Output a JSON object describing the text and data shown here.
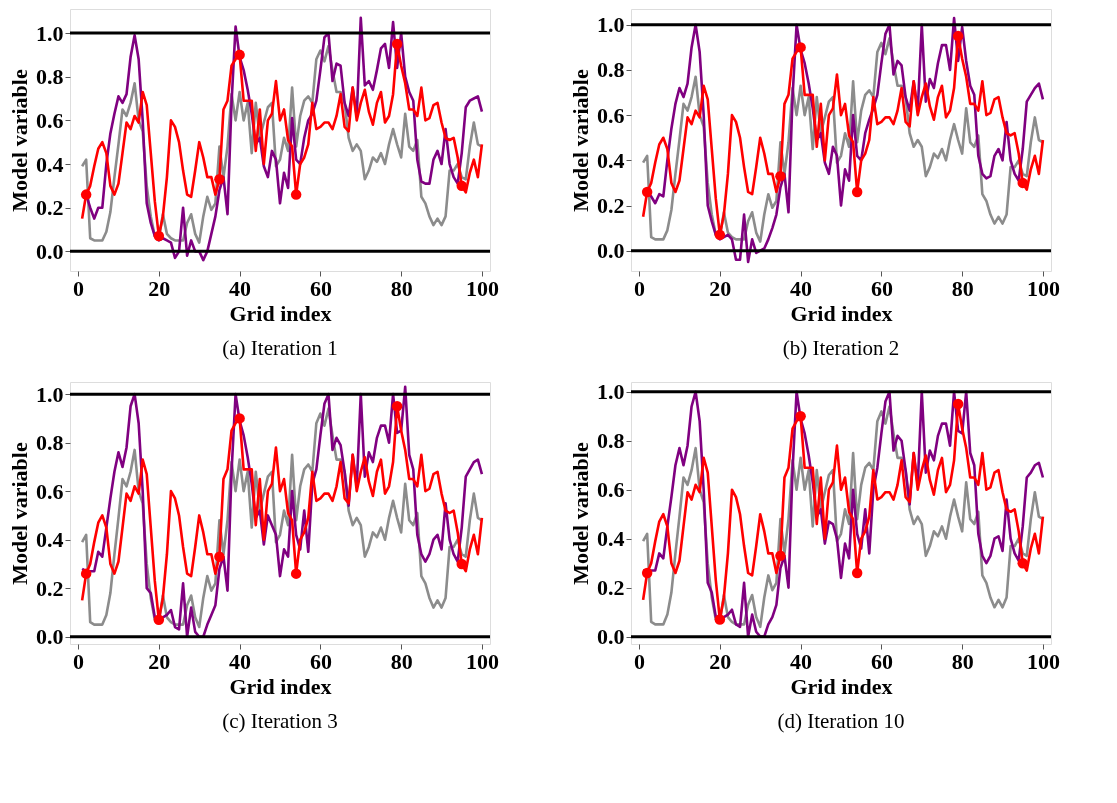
{
  "chart_data": [
    {
      "type": "line",
      "title": "(a) Iteration 1",
      "xlabel": "Grid index",
      "ylabel": "Model variable",
      "grid": false,
      "xlim": [
        -2,
        102
      ],
      "ylim": [
        -0.09,
        1.11
      ],
      "xticks": [
        0,
        20,
        40,
        60,
        80,
        100
      ],
      "yticks": [
        {
          "value": 0,
          "label": "0.0"
        },
        {
          "value": 0.2,
          "label": "0.2"
        },
        {
          "value": 0.4,
          "label": "0.4"
        },
        {
          "value": 0.6,
          "label": "0.6"
        },
        {
          "value": 0.8,
          "label": "0.8"
        },
        {
          "value": 1,
          "label": "1.0"
        }
      ],
      "ref_lines": [
        {
          "axis": "y",
          "value": 0,
          "color": "#000000"
        },
        {
          "axis": "y",
          "value": 1,
          "color": "#000000"
        }
      ],
      "x": [
        1,
        2,
        3,
        4,
        5,
        6,
        7,
        8,
        9,
        10,
        11,
        12,
        13,
        14,
        15,
        16,
        17,
        18,
        19,
        20,
        21,
        22,
        23,
        24,
        25,
        26,
        27,
        28,
        29,
        30,
        31,
        32,
        33,
        34,
        35,
        36,
        37,
        38,
        39,
        40,
        41,
        42,
        43,
        44,
        45,
        46,
        47,
        48,
        49,
        50,
        51,
        52,
        53,
        54,
        55,
        56,
        57,
        58,
        59,
        60,
        61,
        62,
        63,
        64,
        65,
        66,
        67,
        68,
        69,
        70,
        71,
        72,
        73,
        74,
        75,
        76,
        77,
        78,
        79,
        80,
        81,
        82,
        83,
        84,
        85,
        86,
        87,
        88,
        89,
        90,
        91,
        92,
        93,
        94,
        95,
        96,
        97,
        98,
        99,
        100
      ],
      "series": [
        {
          "type": "line",
          "marker": "none",
          "color": "#8c8c8c",
          "values": [
            0.39,
            0.42,
            0.06,
            0.05,
            0.05,
            0.05,
            0.09,
            0.18,
            0.34,
            0.49,
            0.65,
            0.62,
            0.68,
            0.77,
            0.6,
            0.55,
            0.3,
            0.16,
            0.07,
            0.06,
            0.17,
            0.08,
            0.06,
            0.05,
            0.05,
            0.05,
            0.13,
            0.17,
            0.08,
            0.04,
            0.16,
            0.25,
            0.19,
            0.22,
            0.48,
            0.34,
            0.48,
            0.72,
            0.6,
            0.73,
            0.6,
            0.68,
            0.45,
            0.68,
            0.52,
            0.59,
            0.66,
            0.68,
            0.39,
            0.42,
            0.52,
            0.46,
            0.75,
            0.48,
            0.62,
            0.69,
            0.71,
            0.68,
            0.88,
            0.92,
            0.87,
            0.94,
            0.83,
            0.73,
            0.73,
            0.68,
            0.52,
            0.46,
            0.49,
            0.46,
            0.33,
            0.37,
            0.43,
            0.41,
            0.45,
            0.4,
            0.49,
            0.56,
            0.49,
            0.43,
            0.63,
            0.48,
            0.46,
            0.51,
            0.25,
            0.22,
            0.16,
            0.12,
            0.15,
            0.12,
            0.16,
            0.37,
            0.37,
            0.4,
            0.34,
            0.33,
            0.48,
            0.59,
            0.49,
            0.48
          ]
        },
        {
          "type": "line",
          "marker": "none",
          "color": "#800080",
          "values": [
            0.26,
            0.26,
            0.2,
            0.15,
            0.2,
            0.2,
            0.4,
            0.54,
            0.63,
            0.71,
            0.68,
            0.72,
            0.89,
            0.99,
            0.88,
            0.6,
            0.22,
            0.13,
            0.07,
            0.05,
            0.06,
            0.05,
            0.04,
            -0.03,
            0.0,
            0.2,
            -0.02,
            0.05,
            0.0,
            0.0,
            -0.04,
            0.0,
            0.08,
            0.16,
            0.28,
            0.34,
            0.17,
            0.68,
            1.03,
            0.89,
            0.83,
            0.74,
            0.63,
            0.49,
            0.52,
            0.39,
            0.34,
            0.46,
            0.42,
            0.22,
            0.36,
            0.29,
            0.61,
            0.42,
            0.4,
            0.52,
            0.6,
            0.63,
            0.69,
            0.83,
            0.98,
            1.0,
            0.78,
            0.86,
            0.85,
            0.68,
            0.62,
            0.75,
            0.62,
            1.07,
            0.76,
            0.78,
            0.74,
            0.83,
            0.93,
            0.95,
            0.84,
            1.05,
            0.84,
            1.0,
            0.8,
            0.73,
            0.69,
            0.42,
            0.32,
            0.31,
            0.31,
            0.42,
            0.46,
            0.4,
            0.56,
            0.4,
            0.34,
            0.31,
            0.45,
            0.66,
            0.69,
            0.7,
            0.71,
            0.64
          ]
        },
        {
          "type": "line",
          "marker": "none",
          "color": "#ff0000",
          "values": [
            0.15,
            0.26,
            0.3,
            0.39,
            0.47,
            0.5,
            0.45,
            0.3,
            0.26,
            0.31,
            0.45,
            0.59,
            0.56,
            0.62,
            0.59,
            0.73,
            0.67,
            0.45,
            0.23,
            0.07,
            0.16,
            0.34,
            0.6,
            0.57,
            0.5,
            0.37,
            0.26,
            0.25,
            0.37,
            0.5,
            0.43,
            0.34,
            0.34,
            0.26,
            0.33,
            0.65,
            0.69,
            0.85,
            0.88,
            0.9,
            0.69,
            0.69,
            0.69,
            0.46,
            0.65,
            0.4,
            0.6,
            0.63,
            0.78,
            0.6,
            0.65,
            0.51,
            0.48,
            0.26,
            0.4,
            0.43,
            0.49,
            0.68,
            0.56,
            0.57,
            0.59,
            0.59,
            0.56,
            0.62,
            0.72,
            0.57,
            0.55,
            0.75,
            0.6,
            0.68,
            0.74,
            0.64,
            0.58,
            0.68,
            0.73,
            0.59,
            0.62,
            0.72,
            0.95,
            0.85,
            0.77,
            0.65,
            0.65,
            0.62,
            0.75,
            0.6,
            0.61,
            0.67,
            0.68,
            0.59,
            0.52,
            0.51,
            0.52,
            0.43,
            0.3,
            0.27,
            0.36,
            0.42,
            0.34,
            0.49
          ]
        },
        {
          "type": "scatter",
          "marker": "circle",
          "color": "#ff0000",
          "x": [
            2,
            20,
            35,
            40,
            54,
            79,
            95
          ],
          "values": [
            0.26,
            0.07,
            0.33,
            0.9,
            0.26,
            0.95,
            0.3
          ]
        }
      ]
    },
    {
      "type": "line",
      "title": "(b) Iteration 2",
      "xlabel": "Grid index",
      "ylabel": "Model variable",
      "grid": false,
      "xlim": [
        -2,
        102
      ],
      "ylim": [
        -0.09,
        1.07
      ],
      "xticks": [
        0,
        20,
        40,
        60,
        80,
        100
      ],
      "yticks": [
        {
          "value": 0,
          "label": "0.0"
        },
        {
          "value": 0.2,
          "label": "0.2"
        },
        {
          "value": 0.4,
          "label": "0.4"
        },
        {
          "value": 0.6,
          "label": "0.6"
        },
        {
          "value": 0.8,
          "label": "0.8"
        },
        {
          "value": 1,
          "label": "1.0"
        }
      ],
      "ref_lines": [
        {
          "axis": "y",
          "value": 0,
          "color": "#000000"
        },
        {
          "axis": "y",
          "value": 1,
          "color": "#000000"
        }
      ],
      "x": [
        1,
        2,
        3,
        4,
        5,
        6,
        7,
        8,
        9,
        10,
        11,
        12,
        13,
        14,
        15,
        16,
        17,
        18,
        19,
        20,
        21,
        22,
        23,
        24,
        25,
        26,
        27,
        28,
        29,
        30,
        31,
        32,
        33,
        34,
        35,
        36,
        37,
        38,
        39,
        40,
        41,
        42,
        43,
        44,
        45,
        46,
        47,
        48,
        49,
        50,
        51,
        52,
        53,
        54,
        55,
        56,
        57,
        58,
        59,
        60,
        61,
        62,
        63,
        64,
        65,
        66,
        67,
        68,
        69,
        70,
        71,
        72,
        73,
        74,
        75,
        76,
        77,
        78,
        79,
        80,
        81,
        82,
        83,
        84,
        85,
        86,
        87,
        88,
        89,
        90,
        91,
        92,
        93,
        94,
        95,
        96,
        97,
        98,
        99,
        100
      ],
      "series": [
        {
          "type": "line",
          "marker": "none",
          "color": "#8c8c8c",
          "values": [
            0.39,
            0.42,
            0.06,
            0.05,
            0.05,
            0.05,
            0.09,
            0.18,
            0.34,
            0.49,
            0.65,
            0.62,
            0.68,
            0.77,
            0.6,
            0.55,
            0.3,
            0.16,
            0.07,
            0.06,
            0.17,
            0.08,
            0.06,
            0.05,
            0.05,
            0.05,
            0.13,
            0.17,
            0.08,
            0.04,
            0.16,
            0.25,
            0.19,
            0.22,
            0.48,
            0.34,
            0.48,
            0.72,
            0.6,
            0.73,
            0.6,
            0.68,
            0.45,
            0.68,
            0.52,
            0.59,
            0.66,
            0.68,
            0.39,
            0.42,
            0.52,
            0.46,
            0.75,
            0.48,
            0.62,
            0.69,
            0.71,
            0.68,
            0.88,
            0.92,
            0.87,
            0.94,
            0.83,
            0.73,
            0.73,
            0.68,
            0.52,
            0.46,
            0.49,
            0.46,
            0.33,
            0.37,
            0.43,
            0.41,
            0.45,
            0.4,
            0.49,
            0.56,
            0.49,
            0.43,
            0.63,
            0.48,
            0.46,
            0.51,
            0.25,
            0.22,
            0.16,
            0.12,
            0.15,
            0.12,
            0.16,
            0.37,
            0.37,
            0.4,
            0.34,
            0.33,
            0.48,
            0.59,
            0.49,
            0.48
          ]
        },
        {
          "type": "line",
          "marker": "none",
          "color": "#800080",
          "values": [
            0.27,
            0.26,
            0.24,
            0.21,
            0.25,
            0.24,
            0.4,
            0.54,
            0.65,
            0.72,
            0.68,
            0.74,
            0.9,
            1.0,
            0.88,
            0.6,
            0.2,
            0.13,
            0.07,
            0.05,
            0.06,
            0.07,
            0.05,
            -0.04,
            -0.04,
            0.16,
            -0.05,
            0.05,
            -0.01,
            0.0,
            0.01,
            0.05,
            0.1,
            0.16,
            0.28,
            0.34,
            0.17,
            0.68,
            1.0,
            0.89,
            0.83,
            0.74,
            0.63,
            0.49,
            0.52,
            0.39,
            0.34,
            0.46,
            0.42,
            0.2,
            0.36,
            0.31,
            0.6,
            0.42,
            0.4,
            0.52,
            0.58,
            0.63,
            0.69,
            0.83,
            0.96,
            1.0,
            0.78,
            0.84,
            0.82,
            0.68,
            0.62,
            0.75,
            0.62,
            1.0,
            0.66,
            0.76,
            0.72,
            0.83,
            0.91,
            0.91,
            0.8,
            1.03,
            0.84,
            0.99,
            0.84,
            0.73,
            0.69,
            0.42,
            0.34,
            0.32,
            0.33,
            0.42,
            0.45,
            0.4,
            0.57,
            0.4,
            0.34,
            0.31,
            0.45,
            0.66,
            0.69,
            0.72,
            0.74,
            0.67
          ]
        },
        {
          "type": "line",
          "marker": "none",
          "color": "#ff0000",
          "values": [
            0.15,
            0.26,
            0.3,
            0.39,
            0.47,
            0.5,
            0.45,
            0.3,
            0.26,
            0.31,
            0.45,
            0.59,
            0.56,
            0.62,
            0.59,
            0.73,
            0.67,
            0.45,
            0.23,
            0.07,
            0.16,
            0.34,
            0.6,
            0.57,
            0.5,
            0.37,
            0.26,
            0.25,
            0.37,
            0.5,
            0.43,
            0.34,
            0.34,
            0.26,
            0.33,
            0.65,
            0.69,
            0.85,
            0.88,
            0.9,
            0.69,
            0.69,
            0.69,
            0.46,
            0.65,
            0.4,
            0.6,
            0.63,
            0.78,
            0.6,
            0.65,
            0.51,
            0.48,
            0.26,
            0.4,
            0.43,
            0.49,
            0.68,
            0.56,
            0.57,
            0.59,
            0.59,
            0.56,
            0.62,
            0.72,
            0.57,
            0.55,
            0.75,
            0.6,
            0.68,
            0.74,
            0.64,
            0.58,
            0.68,
            0.73,
            0.59,
            0.62,
            0.72,
            0.95,
            0.85,
            0.77,
            0.65,
            0.65,
            0.62,
            0.75,
            0.6,
            0.61,
            0.67,
            0.68,
            0.59,
            0.52,
            0.51,
            0.52,
            0.43,
            0.3,
            0.27,
            0.36,
            0.42,
            0.34,
            0.49
          ]
        },
        {
          "type": "scatter",
          "marker": "circle",
          "color": "#ff0000",
          "x": [
            2,
            20,
            35,
            40,
            54,
            79,
            95
          ],
          "values": [
            0.26,
            0.07,
            0.33,
            0.9,
            0.26,
            0.95,
            0.3
          ]
        }
      ]
    },
    {
      "type": "line",
      "title": "(c) Iteration 3",
      "xlabel": "Grid index",
      "ylabel": "Model variable",
      "grid": false,
      "xlim": [
        -2,
        102
      ],
      "ylim": [
        -0.03,
        1.05
      ],
      "xticks": [
        0,
        20,
        40,
        60,
        80,
        100
      ],
      "yticks": [
        {
          "value": 0,
          "label": "0.0"
        },
        {
          "value": 0.2,
          "label": "0.2"
        },
        {
          "value": 0.4,
          "label": "0.4"
        },
        {
          "value": 0.6,
          "label": "0.6"
        },
        {
          "value": 0.8,
          "label": "0.8"
        },
        {
          "value": 1,
          "label": "1.0"
        }
      ],
      "ref_lines": [
        {
          "axis": "y",
          "value": 0,
          "color": "#000000"
        },
        {
          "axis": "y",
          "value": 1,
          "color": "#000000"
        }
      ],
      "x": [
        1,
        2,
        3,
        4,
        5,
        6,
        7,
        8,
        9,
        10,
        11,
        12,
        13,
        14,
        15,
        16,
        17,
        18,
        19,
        20,
        21,
        22,
        23,
        24,
        25,
        26,
        27,
        28,
        29,
        30,
        31,
        32,
        33,
        34,
        35,
        36,
        37,
        38,
        39,
        40,
        41,
        42,
        43,
        44,
        45,
        46,
        47,
        48,
        49,
        50,
        51,
        52,
        53,
        54,
        55,
        56,
        57,
        58,
        59,
        60,
        61,
        62,
        63,
        64,
        65,
        66,
        67,
        68,
        69,
        70,
        71,
        72,
        73,
        74,
        75,
        76,
        77,
        78,
        79,
        80,
        81,
        82,
        83,
        84,
        85,
        86,
        87,
        88,
        89,
        90,
        91,
        92,
        93,
        94,
        95,
        96,
        97,
        98,
        99,
        100
      ],
      "series": [
        {
          "type": "line",
          "marker": "none",
          "color": "#8c8c8c",
          "values": [
            0.39,
            0.42,
            0.06,
            0.05,
            0.05,
            0.05,
            0.09,
            0.18,
            0.34,
            0.49,
            0.65,
            0.62,
            0.68,
            0.77,
            0.6,
            0.55,
            0.3,
            0.16,
            0.07,
            0.06,
            0.17,
            0.08,
            0.06,
            0.05,
            0.05,
            0.05,
            0.13,
            0.17,
            0.08,
            0.04,
            0.16,
            0.25,
            0.19,
            0.22,
            0.48,
            0.34,
            0.48,
            0.72,
            0.6,
            0.73,
            0.6,
            0.68,
            0.45,
            0.68,
            0.52,
            0.59,
            0.66,
            0.68,
            0.39,
            0.42,
            0.52,
            0.46,
            0.75,
            0.48,
            0.62,
            0.69,
            0.71,
            0.68,
            0.88,
            0.92,
            0.87,
            0.94,
            0.83,
            0.73,
            0.73,
            0.68,
            0.52,
            0.46,
            0.49,
            0.46,
            0.33,
            0.37,
            0.43,
            0.41,
            0.45,
            0.4,
            0.49,
            0.56,
            0.49,
            0.43,
            0.63,
            0.48,
            0.46,
            0.51,
            0.25,
            0.22,
            0.16,
            0.12,
            0.15,
            0.12,
            0.16,
            0.37,
            0.37,
            0.4,
            0.34,
            0.33,
            0.48,
            0.59,
            0.49,
            0.48
          ]
        },
        {
          "type": "line",
          "marker": "none",
          "color": "#800080",
          "values": [
            0.28,
            0.27,
            0.27,
            0.27,
            0.35,
            0.33,
            0.45,
            0.57,
            0.68,
            0.76,
            0.7,
            0.78,
            0.95,
            1.0,
            0.88,
            0.6,
            0.2,
            0.18,
            0.08,
            0.06,
            0.08,
            0.09,
            0.11,
            0.04,
            0.03,
            0.22,
            0.0,
            0.12,
            0.02,
            0.0,
            0.0,
            0.05,
            0.09,
            0.13,
            0.28,
            0.33,
            0.19,
            0.68,
            1.0,
            0.89,
            0.83,
            0.74,
            0.63,
            0.49,
            0.52,
            0.38,
            0.5,
            0.46,
            0.42,
            0.25,
            0.36,
            0.33,
            0.6,
            0.42,
            0.36,
            0.52,
            0.35,
            0.63,
            0.69,
            0.83,
            0.96,
            1.0,
            0.77,
            0.82,
            0.79,
            0.68,
            0.54,
            0.75,
            0.62,
            1.0,
            0.66,
            0.76,
            0.72,
            0.82,
            0.87,
            0.87,
            0.8,
            1.0,
            0.84,
            0.85,
            1.03,
            0.75,
            0.69,
            0.42,
            0.34,
            0.31,
            0.34,
            0.4,
            0.42,
            0.36,
            0.55,
            0.4,
            0.34,
            0.31,
            0.45,
            0.66,
            0.69,
            0.72,
            0.73,
            0.67
          ]
        },
        {
          "type": "line",
          "marker": "none",
          "color": "#ff0000",
          "values": [
            0.15,
            0.26,
            0.3,
            0.39,
            0.47,
            0.5,
            0.45,
            0.3,
            0.26,
            0.31,
            0.45,
            0.59,
            0.56,
            0.62,
            0.59,
            0.73,
            0.67,
            0.45,
            0.23,
            0.07,
            0.16,
            0.34,
            0.6,
            0.57,
            0.5,
            0.37,
            0.26,
            0.25,
            0.37,
            0.5,
            0.43,
            0.34,
            0.34,
            0.26,
            0.33,
            0.65,
            0.69,
            0.85,
            0.88,
            0.9,
            0.69,
            0.69,
            0.69,
            0.46,
            0.65,
            0.4,
            0.6,
            0.63,
            0.78,
            0.6,
            0.65,
            0.51,
            0.48,
            0.26,
            0.4,
            0.43,
            0.49,
            0.68,
            0.56,
            0.57,
            0.59,
            0.59,
            0.56,
            0.62,
            0.72,
            0.57,
            0.55,
            0.75,
            0.6,
            0.68,
            0.74,
            0.64,
            0.58,
            0.68,
            0.73,
            0.59,
            0.62,
            0.72,
            0.95,
            0.85,
            0.77,
            0.65,
            0.65,
            0.62,
            0.75,
            0.6,
            0.61,
            0.67,
            0.68,
            0.59,
            0.52,
            0.51,
            0.52,
            0.43,
            0.3,
            0.27,
            0.36,
            0.42,
            0.34,
            0.49
          ]
        },
        {
          "type": "scatter",
          "marker": "circle",
          "color": "#ff0000",
          "x": [
            2,
            20,
            35,
            40,
            54,
            79,
            95
          ],
          "values": [
            0.26,
            0.07,
            0.33,
            0.9,
            0.26,
            0.95,
            0.3
          ]
        }
      ]
    },
    {
      "type": "line",
      "title": "(d) Iteration 10",
      "xlabel": "Grid index",
      "ylabel": "Model variable",
      "grid": false,
      "xlim": [
        -2,
        102
      ],
      "ylim": [
        -0.03,
        1.04
      ],
      "xticks": [
        0,
        20,
        40,
        60,
        80,
        100
      ],
      "yticks": [
        {
          "value": 0,
          "label": "0.0"
        },
        {
          "value": 0.2,
          "label": "0.2"
        },
        {
          "value": 0.4,
          "label": "0.4"
        },
        {
          "value": 0.6,
          "label": "0.6"
        },
        {
          "value": 0.8,
          "label": "0.8"
        },
        {
          "value": 1,
          "label": "1.0"
        }
      ],
      "ref_lines": [
        {
          "axis": "y",
          "value": 0,
          "color": "#000000"
        },
        {
          "axis": "y",
          "value": 1,
          "color": "#000000"
        }
      ],
      "x": [
        1,
        2,
        3,
        4,
        5,
        6,
        7,
        8,
        9,
        10,
        11,
        12,
        13,
        14,
        15,
        16,
        17,
        18,
        19,
        20,
        21,
        22,
        23,
        24,
        25,
        26,
        27,
        28,
        29,
        30,
        31,
        32,
        33,
        34,
        35,
        36,
        37,
        38,
        39,
        40,
        41,
        42,
        43,
        44,
        45,
        46,
        47,
        48,
        49,
        50,
        51,
        52,
        53,
        54,
        55,
        56,
        57,
        58,
        59,
        60,
        61,
        62,
        63,
        64,
        65,
        66,
        67,
        68,
        69,
        70,
        71,
        72,
        73,
        74,
        75,
        76,
        77,
        78,
        79,
        80,
        81,
        82,
        83,
        84,
        85,
        86,
        87,
        88,
        89,
        90,
        91,
        92,
        93,
        94,
        95,
        96,
        97,
        98,
        99,
        100
      ],
      "series": [
        {
          "type": "line",
          "marker": "none",
          "color": "#8c8c8c",
          "values": [
            0.39,
            0.42,
            0.06,
            0.05,
            0.05,
            0.05,
            0.09,
            0.18,
            0.34,
            0.49,
            0.65,
            0.62,
            0.68,
            0.77,
            0.6,
            0.55,
            0.3,
            0.16,
            0.07,
            0.06,
            0.17,
            0.08,
            0.06,
            0.05,
            0.05,
            0.05,
            0.13,
            0.17,
            0.08,
            0.04,
            0.16,
            0.25,
            0.19,
            0.22,
            0.48,
            0.34,
            0.48,
            0.72,
            0.6,
            0.73,
            0.6,
            0.68,
            0.45,
            0.68,
            0.52,
            0.59,
            0.66,
            0.68,
            0.39,
            0.42,
            0.52,
            0.46,
            0.75,
            0.48,
            0.62,
            0.69,
            0.71,
            0.68,
            0.88,
            0.92,
            0.87,
            0.94,
            0.83,
            0.73,
            0.73,
            0.68,
            0.52,
            0.46,
            0.49,
            0.46,
            0.33,
            0.37,
            0.43,
            0.41,
            0.45,
            0.4,
            0.49,
            0.56,
            0.49,
            0.43,
            0.63,
            0.48,
            0.46,
            0.51,
            0.25,
            0.22,
            0.16,
            0.12,
            0.15,
            0.12,
            0.16,
            0.37,
            0.37,
            0.4,
            0.34,
            0.33,
            0.48,
            0.59,
            0.49,
            0.48
          ]
        },
        {
          "type": "line",
          "marker": "none",
          "color": "#800080",
          "values": [
            0.27,
            0.27,
            0.27,
            0.27,
            0.34,
            0.32,
            0.45,
            0.57,
            0.7,
            0.77,
            0.7,
            0.78,
            0.94,
            1.0,
            0.88,
            0.6,
            0.22,
            0.18,
            0.08,
            0.06,
            0.08,
            0.09,
            0.11,
            0.05,
            0.04,
            0.22,
            0.0,
            0.09,
            0.02,
            0.0,
            0.0,
            0.05,
            0.08,
            0.13,
            0.28,
            0.33,
            0.2,
            0.68,
            1.0,
            0.89,
            0.83,
            0.74,
            0.63,
            0.49,
            0.52,
            0.38,
            0.47,
            0.46,
            0.4,
            0.24,
            0.38,
            0.32,
            0.6,
            0.42,
            0.36,
            0.52,
            0.34,
            0.6,
            0.69,
            0.83,
            0.96,
            1.0,
            0.76,
            0.82,
            0.8,
            0.68,
            0.54,
            0.75,
            0.62,
            1.0,
            0.67,
            0.76,
            0.72,
            0.82,
            0.87,
            0.87,
            0.78,
            1.0,
            0.84,
            0.83,
            1.0,
            0.75,
            0.7,
            0.42,
            0.33,
            0.3,
            0.33,
            0.4,
            0.41,
            0.35,
            0.56,
            0.4,
            0.34,
            0.31,
            0.45,
            0.65,
            0.67,
            0.7,
            0.71,
            0.65
          ]
        },
        {
          "type": "line",
          "marker": "none",
          "color": "#ff0000",
          "values": [
            0.15,
            0.26,
            0.3,
            0.39,
            0.47,
            0.5,
            0.45,
            0.3,
            0.26,
            0.31,
            0.45,
            0.59,
            0.56,
            0.62,
            0.59,
            0.73,
            0.67,
            0.45,
            0.23,
            0.07,
            0.16,
            0.34,
            0.6,
            0.57,
            0.5,
            0.37,
            0.26,
            0.25,
            0.37,
            0.5,
            0.43,
            0.34,
            0.34,
            0.26,
            0.33,
            0.65,
            0.69,
            0.85,
            0.88,
            0.9,
            0.69,
            0.69,
            0.69,
            0.46,
            0.65,
            0.4,
            0.6,
            0.63,
            0.78,
            0.6,
            0.65,
            0.51,
            0.48,
            0.26,
            0.4,
            0.43,
            0.49,
            0.68,
            0.56,
            0.57,
            0.59,
            0.59,
            0.56,
            0.62,
            0.72,
            0.57,
            0.55,
            0.75,
            0.6,
            0.68,
            0.74,
            0.64,
            0.58,
            0.68,
            0.73,
            0.59,
            0.62,
            0.72,
            0.95,
            0.85,
            0.77,
            0.65,
            0.65,
            0.62,
            0.75,
            0.6,
            0.61,
            0.67,
            0.68,
            0.59,
            0.52,
            0.51,
            0.52,
            0.43,
            0.3,
            0.27,
            0.36,
            0.42,
            0.34,
            0.49
          ]
        },
        {
          "type": "scatter",
          "marker": "circle",
          "color": "#ff0000",
          "x": [
            2,
            20,
            35,
            40,
            54,
            79,
            95
          ],
          "values": [
            0.26,
            0.07,
            0.33,
            0.9,
            0.26,
            0.95,
            0.3
          ]
        }
      ]
    }
  ]
}
